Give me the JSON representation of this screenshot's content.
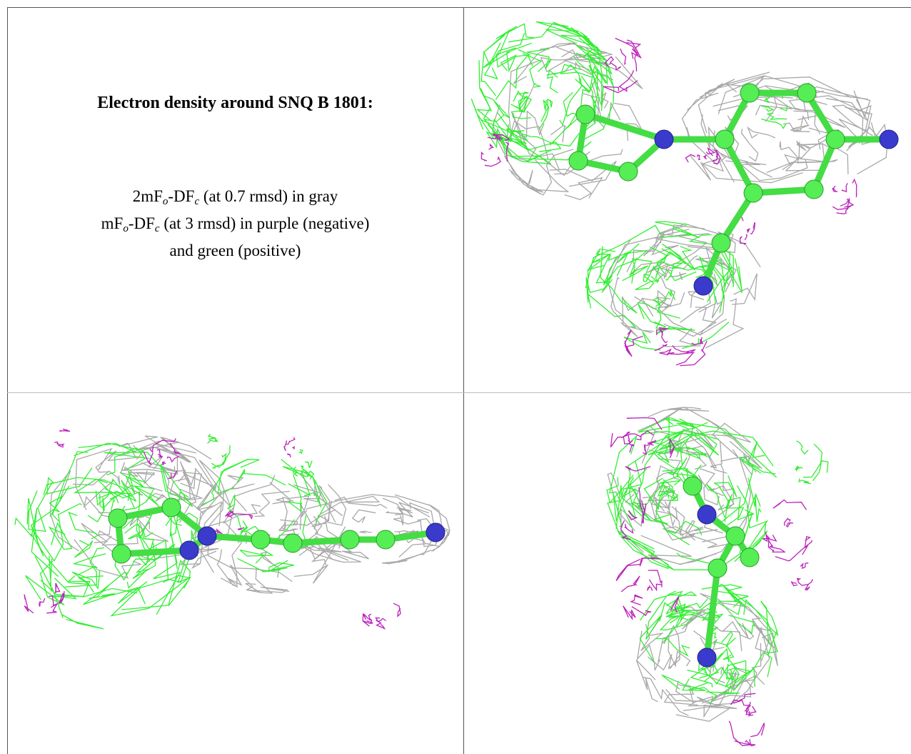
{
  "caption": {
    "title": "Electron density around SNQ B 1801:",
    "lines": [
      [
        {
          "text": "2mF"
        },
        {
          "sub": "o"
        },
        {
          "text": "-DF"
        },
        {
          "sub": "c"
        },
        {
          "text": " (at 0.7 rmsd) in gray"
        }
      ],
      [
        {
          "text": "mF"
        },
        {
          "sub": "o"
        },
        {
          "text": "-DF"
        },
        {
          "sub": "c"
        },
        {
          "text": " (at 3 rmsd) in purple (negative)"
        }
      ],
      [
        {
          "text": "and green (positive)"
        }
      ]
    ]
  }
}
